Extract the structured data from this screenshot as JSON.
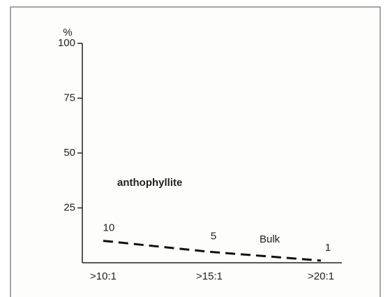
{
  "chart_data": {
    "type": "line",
    "y_label": "%",
    "categories": [
      ">10:1",
      ">15:1",
      ">20:1"
    ],
    "series": [
      {
        "name": "Bulk",
        "color": "#111111",
        "values": [
          10,
          5,
          1
        ]
      }
    ],
    "annotations": [
      "anthophyllite"
    ],
    "ylim": [
      0,
      100
    ],
    "yticks": [
      25,
      50,
      75,
      100
    ],
    "grid": false,
    "line_style": "dashed"
  }
}
